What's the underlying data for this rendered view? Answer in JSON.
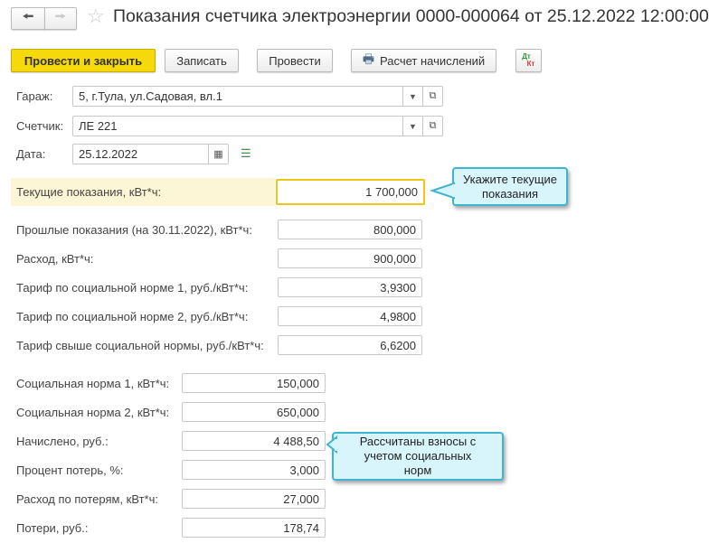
{
  "header": {
    "title": "Показания счетчика электроэнергии 0000-000064 от 25.12.2022 12:00:00"
  },
  "toolbar": {
    "post_close": "Провести и закрыть",
    "save": "Записать",
    "post": "Провести",
    "calc": "Расчет начислений",
    "dtkt_dt": "Дт",
    "dtkt_kt": "Кт"
  },
  "form": {
    "garage": {
      "label": "Гараж:",
      "value": "5, г.Тула, ул.Садовая, вл.1"
    },
    "meter": {
      "label": "Счетчик:",
      "value": "ЛЕ 221"
    },
    "date": {
      "label": "Дата:",
      "value": "25.12.2022"
    },
    "current": {
      "label": "Текущие показания, кВт*ч:",
      "value": "1 700,000"
    },
    "rows1": [
      {
        "label": "Прошлые показания (на 30.11.2022), кВт*ч:",
        "value": "800,000"
      },
      {
        "label": "Расход, кВт*ч:",
        "value": "900,000"
      },
      {
        "label": "Тариф по социальной норме 1, руб./кВт*ч:",
        "value": "3,9300"
      },
      {
        "label": "Тариф по социальной норме 2, руб./кВт*ч:",
        "value": "4,9800"
      },
      {
        "label": "Тариф свыше социальной нормы, руб./кВт*ч:",
        "value": "6,6200"
      }
    ],
    "rows2": [
      {
        "label": "Социальная норма 1, кВт*ч:",
        "value": "150,000"
      },
      {
        "label": "Социальная норма 2, кВт*ч:",
        "value": "650,000"
      },
      {
        "label": "Начислено, руб.:",
        "value": "4 488,50"
      },
      {
        "label": "Процент потерь, %:",
        "value": "3,000"
      },
      {
        "label": "Расход по потерям, кВт*ч:",
        "value": "27,000"
      },
      {
        "label": "Потери, руб.:",
        "value": "178,74"
      }
    ]
  },
  "callouts": {
    "current": "Укажите текущие показания",
    "charged": "Рассчитаны взносы с учетом социальных норм"
  }
}
